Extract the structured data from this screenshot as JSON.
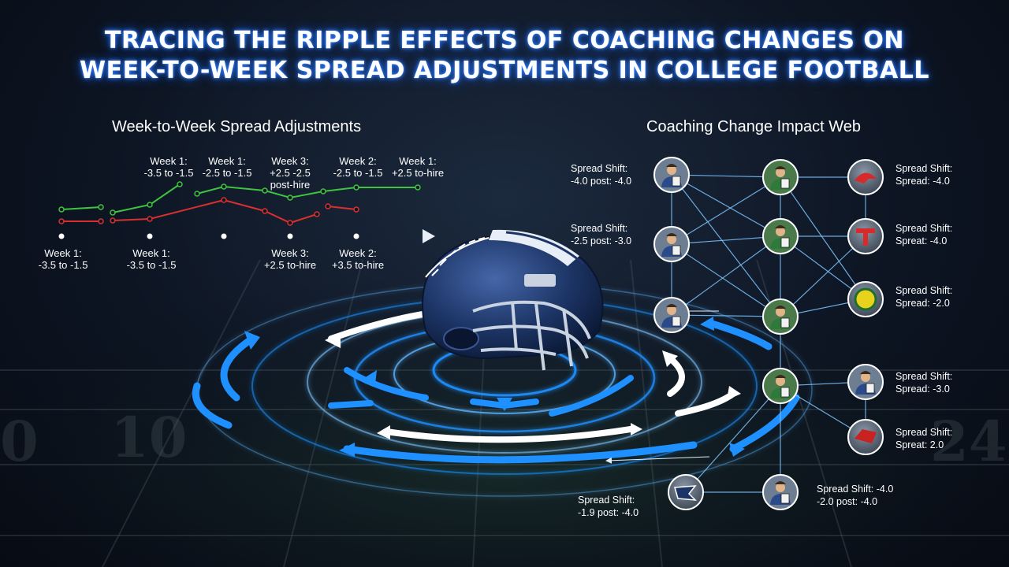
{
  "header": {
    "title_line1": "TRACING THE RIPPLE EFFECTS OF COACHING CHANGES ON",
    "title_line2": "WEEK-TO-WEEK SPREAD ADJUSTMENTS IN COLLEGE FOOTBALL"
  },
  "left_panel": {
    "title": "Week-to-Week Spread Adjustments",
    "top_labels": [
      {
        "line1": "Week 1:",
        "line2": "-3.5 to -1.5",
        "line3": ""
      },
      {
        "line1": "Week 1:",
        "line2": "-2.5 to -1.5",
        "line3": ""
      },
      {
        "line1": "Week 3:",
        "line2": "+2.5 -2.5",
        "line3": "post-hire"
      },
      {
        "line1": "Week 2:",
        "line2": "-2.5 to -1.5",
        "line3": ""
      },
      {
        "line1": "Week 1:",
        "line2": "+2.5 to-hire",
        "line3": ""
      }
    ],
    "bottom_labels": [
      {
        "line1": "Week 1:",
        "line2": "-3.5 to -1.5"
      },
      {
        "line1": "Week 1:",
        "line2": "-3.5 to -1.5"
      },
      {
        "line1": "Week 3:",
        "line2": "+2.5 to-hire"
      },
      {
        "line1": "Week 2:",
        "line2": "+3.5 to-hire"
      }
    ]
  },
  "right_panel": {
    "title": "Coaching Change Impact Web",
    "labels": [
      {
        "line1": "Spread Shift:",
        "line2": "-4.0 post: -4.0"
      },
      {
        "line1": "Spread Shift:",
        "line2": "-2.5 post: -3.0"
      },
      {
        "line1": "Spread Shift:",
        "line2": "Spread: -4.0"
      },
      {
        "line1": "Spread Shift:",
        "line2": "Spreat: -4.0"
      },
      {
        "line1": "Spread Shift:",
        "line2": "Spread: -2.0"
      },
      {
        "line1": "Spread Shift:",
        "line2": "Spread: -3.0"
      },
      {
        "line1": "Spread Shift:",
        "line2": "Spreat: 2.0"
      },
      {
        "line1": "Spread Shift: -4.0",
        "line2": "-2.0 post: -4.0"
      },
      {
        "line1": "Spread Shift:",
        "line2": "-1.9 post: -4.0"
      }
    ]
  },
  "colors": {
    "accent_blue": "#1e90ff",
    "line_green": "#3ec43e",
    "line_red": "#d8302f",
    "helmet_navy": "#1d3566"
  },
  "icons": [
    "football-helmet-icon",
    "coach-avatar-icon",
    "team-logo-icon"
  ]
}
